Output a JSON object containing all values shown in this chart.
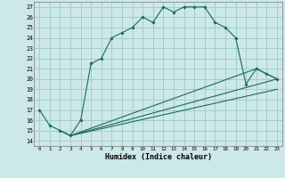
{
  "background_color": "#cce8e8",
  "grid_color": "#a0c8c8",
  "line_color": "#1a6b5a",
  "xlabel": "Humidex (Indice chaleur)",
  "xlim": [
    -0.5,
    23.5
  ],
  "ylim": [
    13.5,
    27.5
  ],
  "yticks": [
    14,
    15,
    16,
    17,
    18,
    19,
    20,
    21,
    22,
    23,
    24,
    25,
    26,
    27
  ],
  "xticks": [
    0,
    1,
    2,
    3,
    4,
    5,
    6,
    7,
    8,
    9,
    10,
    11,
    12,
    13,
    14,
    15,
    16,
    17,
    18,
    19,
    20,
    21,
    22,
    23
  ],
  "line1_x": [
    0,
    1,
    2,
    3,
    4,
    5,
    6,
    7,
    8,
    9,
    10,
    11,
    12,
    13,
    14,
    15,
    16,
    17,
    18,
    19,
    20,
    21,
    22,
    23
  ],
  "line1_y": [
    17.0,
    15.5,
    15.0,
    14.5,
    16.0,
    21.5,
    22.0,
    24.0,
    24.5,
    25.0,
    26.0,
    25.5,
    27.0,
    26.5,
    27.0,
    27.0,
    27.0,
    25.5,
    25.0,
    24.0,
    19.5,
    21.0,
    20.5,
    20.0
  ],
  "line2_x": [
    2,
    3,
    21,
    22,
    23
  ],
  "line2_y": [
    15.0,
    14.5,
    21.0,
    20.5,
    20.0
  ],
  "line3_x": [
    2,
    3,
    23
  ],
  "line3_y": [
    15.0,
    14.5,
    20.0
  ],
  "line4_x": [
    3,
    23
  ],
  "line4_y": [
    14.5,
    19.0
  ]
}
